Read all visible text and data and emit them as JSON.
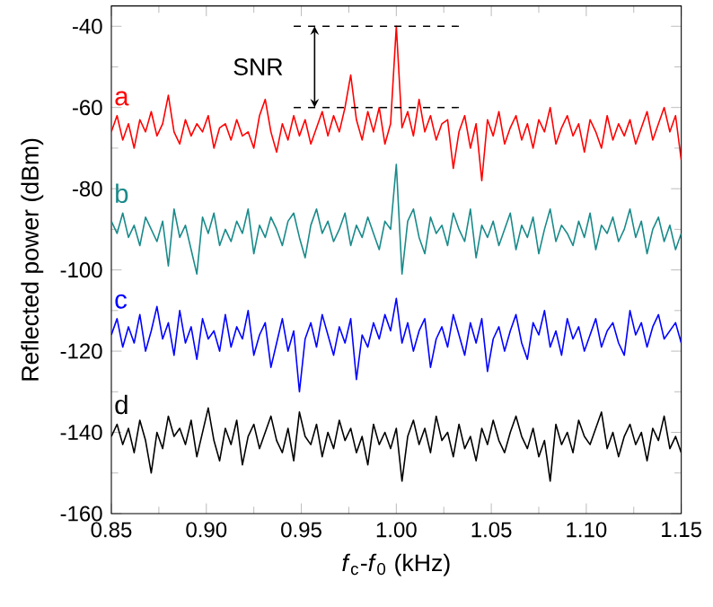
{
  "chart_data": {
    "type": "line",
    "xlabel": "*f*$_{c}$-*f*$_{0}$ (kHz)",
    "ylabel": "Reflected power (dBm)",
    "xlim": [
      0.85,
      1.15
    ],
    "ylim": [
      -160,
      -35
    ],
    "xticks": [
      {
        "value": 0.85,
        "label": "0.85"
      },
      {
        "value": 0.9,
        "label": "0.90"
      },
      {
        "value": 0.95,
        "label": "0.95"
      },
      {
        "value": 1.0,
        "label": "1.00"
      },
      {
        "value": 1.05,
        "label": "1.05"
      },
      {
        "value": 1.1,
        "label": "1.10"
      },
      {
        "value": 1.15,
        "label": "1.15"
      }
    ],
    "yticks": [
      -160,
      -140,
      -120,
      -100,
      -80,
      -60,
      -40
    ],
    "x": [
      0.85,
      0.853,
      0.856,
      0.859,
      0.862,
      0.865,
      0.868,
      0.871,
      0.874,
      0.877,
      0.88,
      0.883,
      0.886,
      0.889,
      0.892,
      0.895,
      0.898,
      0.901,
      0.904,
      0.907,
      0.91,
      0.913,
      0.916,
      0.919,
      0.922,
      0.925,
      0.928,
      0.931,
      0.934,
      0.937,
      0.94,
      0.943,
      0.946,
      0.949,
      0.952,
      0.955,
      0.958,
      0.961,
      0.964,
      0.967,
      0.97,
      0.973,
      0.976,
      0.979,
      0.982,
      0.985,
      0.988,
      0.991,
      0.994,
      0.997,
      1.0,
      1.003,
      1.006,
      1.009,
      1.012,
      1.015,
      1.018,
      1.021,
      1.024,
      1.027,
      1.03,
      1.033,
      1.036,
      1.039,
      1.042,
      1.045,
      1.048,
      1.051,
      1.054,
      1.057,
      1.06,
      1.063,
      1.066,
      1.069,
      1.072,
      1.075,
      1.078,
      1.081,
      1.084,
      1.087,
      1.09,
      1.093,
      1.096,
      1.099,
      1.102,
      1.105,
      1.108,
      1.111,
      1.114,
      1.117,
      1.12,
      1.123,
      1.126,
      1.129,
      1.132,
      1.135,
      1.138,
      1.141,
      1.144,
      1.147,
      1.15
    ],
    "series": [
      {
        "name": "a",
        "color": "#ff0000",
        "values": [
          -66,
          -62,
          -68,
          -64,
          -70,
          -63,
          -66,
          -61,
          -67,
          -64,
          -57,
          -66,
          -69,
          -63,
          -67,
          -64,
          -66,
          -62,
          -70,
          -65,
          -64,
          -68,
          -63,
          -67,
          -66,
          -70,
          -62,
          -58,
          -66,
          -71,
          -64,
          -68,
          -62,
          -67,
          -63,
          -69,
          -65,
          -61,
          -67,
          -62,
          -66,
          -60,
          -52,
          -63,
          -68,
          -61,
          -66,
          -60,
          -69,
          -64,
          -40,
          -65,
          -61,
          -67,
          -58,
          -66,
          -62,
          -68,
          -64,
          -63,
          -75,
          -66,
          -62,
          -70,
          -64,
          -78,
          -63,
          -67,
          -61,
          -69,
          -65,
          -62,
          -68,
          -64,
          -70,
          -63,
          -66,
          -60,
          -69,
          -65,
          -62,
          -67,
          -64,
          -71,
          -63,
          -66,
          -70,
          -62,
          -68,
          -64,
          -67,
          -63,
          -69,
          -65,
          -61,
          -68,
          -64,
          -60,
          -66,
          -62,
          -73
        ]
      },
      {
        "name": "b",
        "color": "#1a8a8a",
        "values": [
          -88,
          -91,
          -86,
          -92,
          -89,
          -94,
          -87,
          -90,
          -93,
          -88,
          -99,
          -85,
          -92,
          -89,
          -95,
          -101,
          -87,
          -91,
          -86,
          -94,
          -90,
          -93,
          -88,
          -91,
          -85,
          -96,
          -89,
          -92,
          -87,
          -90,
          -94,
          -88,
          -86,
          -92,
          -97,
          -89,
          -85,
          -91,
          -88,
          -93,
          -90,
          -86,
          -94,
          -89,
          -92,
          -87,
          -91,
          -95,
          -88,
          -90,
          -74,
          -101,
          -88,
          -85,
          -92,
          -96,
          -87,
          -91,
          -89,
          -94,
          -86,
          -90,
          -93,
          -85,
          -97,
          -89,
          -92,
          -88,
          -94,
          -90,
          -86,
          -95,
          -89,
          -92,
          -87,
          -96,
          -90,
          -85,
          -93,
          -89,
          -91,
          -94,
          -88,
          -92,
          -86,
          -95,
          -89,
          -91,
          -87,
          -93,
          -90,
          -85,
          -92,
          -88,
          -96,
          -90,
          -87,
          -93,
          -89,
          -95,
          -91
        ]
      },
      {
        "name": "c",
        "color": "#0000ff",
        "values": [
          -116,
          -112,
          -119,
          -114,
          -118,
          -111,
          -120,
          -115,
          -109,
          -117,
          -113,
          -121,
          -110,
          -118,
          -114,
          -122,
          -112,
          -117,
          -115,
          -120,
          -111,
          -119,
          -114,
          -117,
          -110,
          -121,
          -116,
          -113,
          -124,
          -118,
          -112,
          -120,
          -115,
          -130,
          -117,
          -113,
          -119,
          -111,
          -116,
          -121,
          -114,
          -118,
          -112,
          -127,
          -116,
          -119,
          -113,
          -117,
          -111,
          -115,
          -107,
          -118,
          -113,
          -120,
          -115,
          -112,
          -124,
          -117,
          -114,
          -119,
          -111,
          -116,
          -121,
          -113,
          -118,
          -112,
          -125,
          -117,
          -114,
          -120,
          -115,
          -111,
          -118,
          -122,
          -113,
          -116,
          -110,
          -119,
          -115,
          -121,
          -112,
          -117,
          -114,
          -120,
          -116,
          -112,
          -119,
          -115,
          -113,
          -118,
          -121,
          -110,
          -116,
          -113,
          -119,
          -114,
          -111,
          -117,
          -115,
          -113,
          -118
        ]
      },
      {
        "name": "d",
        "color": "#000000",
        "values": [
          -141,
          -138,
          -143,
          -139,
          -145,
          -137,
          -142,
          -150,
          -140,
          -144,
          -136,
          -141,
          -139,
          -143,
          -137,
          -146,
          -140,
          -134,
          -142,
          -147,
          -139,
          -143,
          -137,
          -148,
          -141,
          -138,
          -144,
          -140,
          -136,
          -142,
          -145,
          -139,
          -147,
          -135,
          -141,
          -143,
          -138,
          -146,
          -140,
          -144,
          -137,
          -142,
          -139,
          -145,
          -141,
          -148,
          -138,
          -143,
          -140,
          -144,
          -139,
          -152,
          -141,
          -137,
          -143,
          -139,
          -145,
          -136,
          -142,
          -140,
          -146,
          -138,
          -144,
          -141,
          -147,
          -139,
          -143,
          -137,
          -142,
          -145,
          -140,
          -136,
          -141,
          -144,
          -139,
          -146,
          -142,
          -152,
          -138,
          -143,
          -140,
          -145,
          -137,
          -141,
          -143,
          -139,
          -135,
          -144,
          -140,
          -146,
          -141,
          -138,
          -143,
          -140,
          -147,
          -139,
          -142,
          -136,
          -144,
          -141,
          -145
        ]
      },
      {
        "type": "line",
        "color": "#000000",
        "line_style": "dashed",
        "values": [
          null,
          null,
          null,
          null,
          null,
          null,
          null,
          null,
          null,
          null,
          null,
          null,
          null,
          null,
          null,
          null,
          null,
          null,
          null,
          null,
          null,
          null,
          null,
          null,
          null,
          null,
          null,
          null,
          null,
          null,
          null,
          null,
          -40,
          -40,
          -40,
          -40,
          -40,
          -40,
          -40,
          -40,
          -40,
          -40,
          -40,
          -40,
          -40,
          -40,
          -40,
          -40,
          -40,
          -40,
          -40,
          -40,
          -40,
          -40,
          -40,
          -40,
          -40,
          -40,
          -40,
          -40,
          -40,
          -40,
          null,
          null,
          null,
          null,
          null,
          null,
          null,
          null,
          null,
          null,
          null,
          null,
          null,
          null,
          null,
          null,
          null,
          null,
          null,
          null,
          null,
          null,
          null,
          null,
          null,
          null,
          null,
          null,
          null,
          null,
          null,
          null,
          null,
          null,
          null,
          null,
          null,
          null,
          null
        ]
      },
      {
        "type": "line",
        "color": "#000000",
        "line_style": "dashed",
        "values": [
          null,
          null,
          null,
          null,
          null,
          null,
          null,
          null,
          null,
          null,
          null,
          null,
          null,
          null,
          null,
          null,
          null,
          null,
          null,
          null,
          null,
          null,
          null,
          null,
          null,
          null,
          null,
          null,
          null,
          null,
          null,
          null,
          -60,
          -60,
          -60,
          -60,
          -60,
          -60,
          -60,
          -60,
          -60,
          -60,
          -60,
          -60,
          -60,
          -60,
          -60,
          -60,
          -60,
          -60,
          -60,
          -60,
          -60,
          -60,
          -60,
          -60,
          -60,
          -60,
          -60,
          -60,
          -60,
          -60,
          null,
          null,
          null,
          null,
          null,
          null,
          null,
          null,
          null,
          null,
          null,
          null,
          null,
          null,
          null,
          null,
          null,
          null,
          null,
          null,
          null,
          null,
          null,
          null,
          null,
          null,
          null,
          null,
          null,
          null,
          null,
          null,
          null,
          null,
          null,
          null,
          null,
          null,
          null
        ]
      }
    ],
    "annotations": [
      "SNR"
    ]
  }
}
